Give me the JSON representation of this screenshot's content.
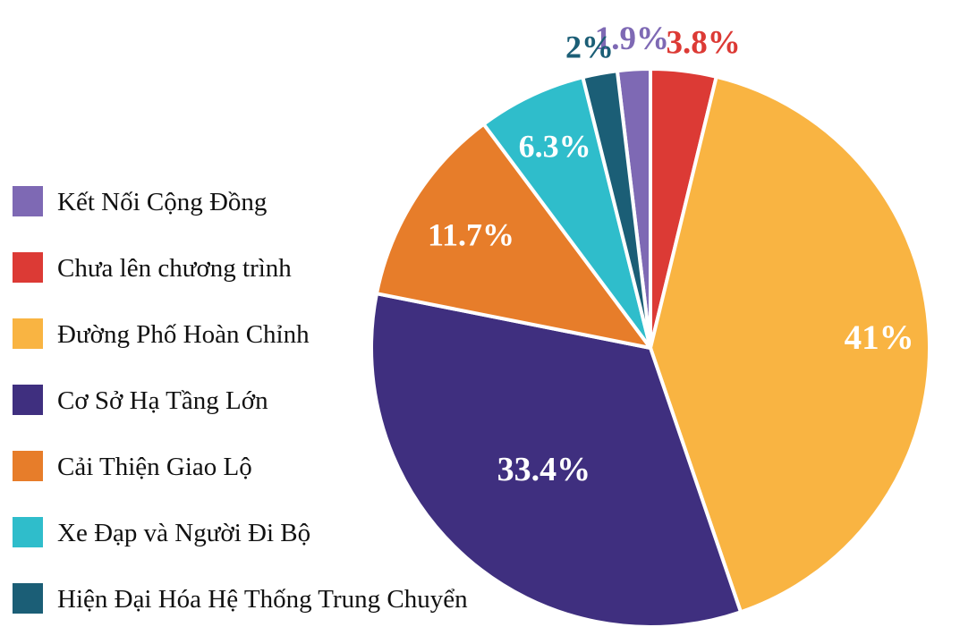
{
  "chart_data": {
    "type": "pie",
    "slices": [
      {
        "label": "Kết Nối Cộng Đồng",
        "value": 1.9,
        "display": "1.9%",
        "color": "#7e69b4"
      },
      {
        "label": "Chưa lên chương trình",
        "value": 3.8,
        "display": "3.8%",
        "color": "#dc3a35"
      },
      {
        "label": "Đường Phố Hoàn Chỉnh",
        "value": 41,
        "display": "41%",
        "color": "#f9b442"
      },
      {
        "label": "Cơ Sở Hạ Tầng Lớn",
        "value": 33.4,
        "display": "33.4%",
        "color": "#3f2f7f"
      },
      {
        "label": "Cải Thiện Giao Lộ",
        "value": 11.7,
        "display": "11.7%",
        "color": "#e77d2a"
      },
      {
        "label": "Xe Đạp và Người Đi Bộ",
        "value": 6.3,
        "display": "6.3%",
        "color": "#2fbdcb"
      },
      {
        "label": "Hiện Đại Hóa Hệ Thống Trung Chuyển",
        "value": 2,
        "display": "2%",
        "color": "#1b5e76"
      }
    ],
    "legend_position": "left",
    "label_colors": {
      "inside": "#ffffff"
    }
  }
}
